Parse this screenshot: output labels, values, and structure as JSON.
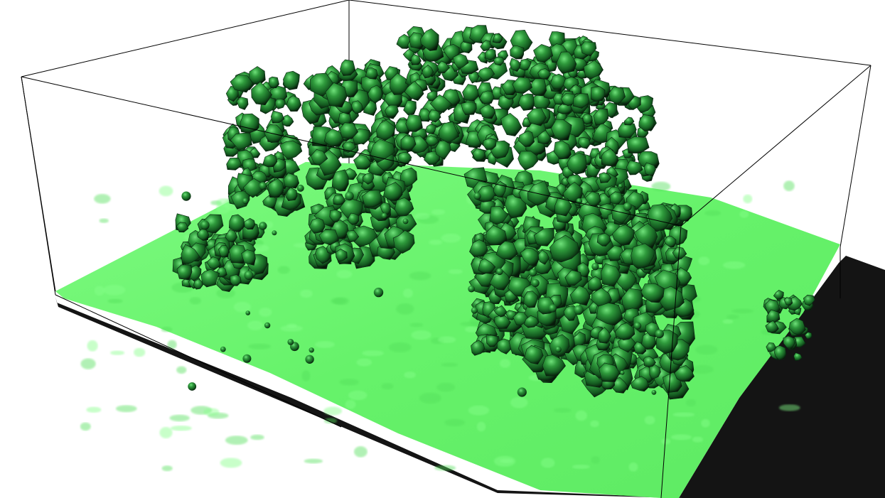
{
  "viewer": {
    "background": "#ffffff",
    "box_color": "#000000",
    "membrane_color": "#66f26a",
    "membrane_shadow": "#3fd447",
    "membrane_edge": "#141414",
    "density_color": "#2f8f3a",
    "density_dark": "#0d2a12",
    "density_light": "#57d862"
  }
}
